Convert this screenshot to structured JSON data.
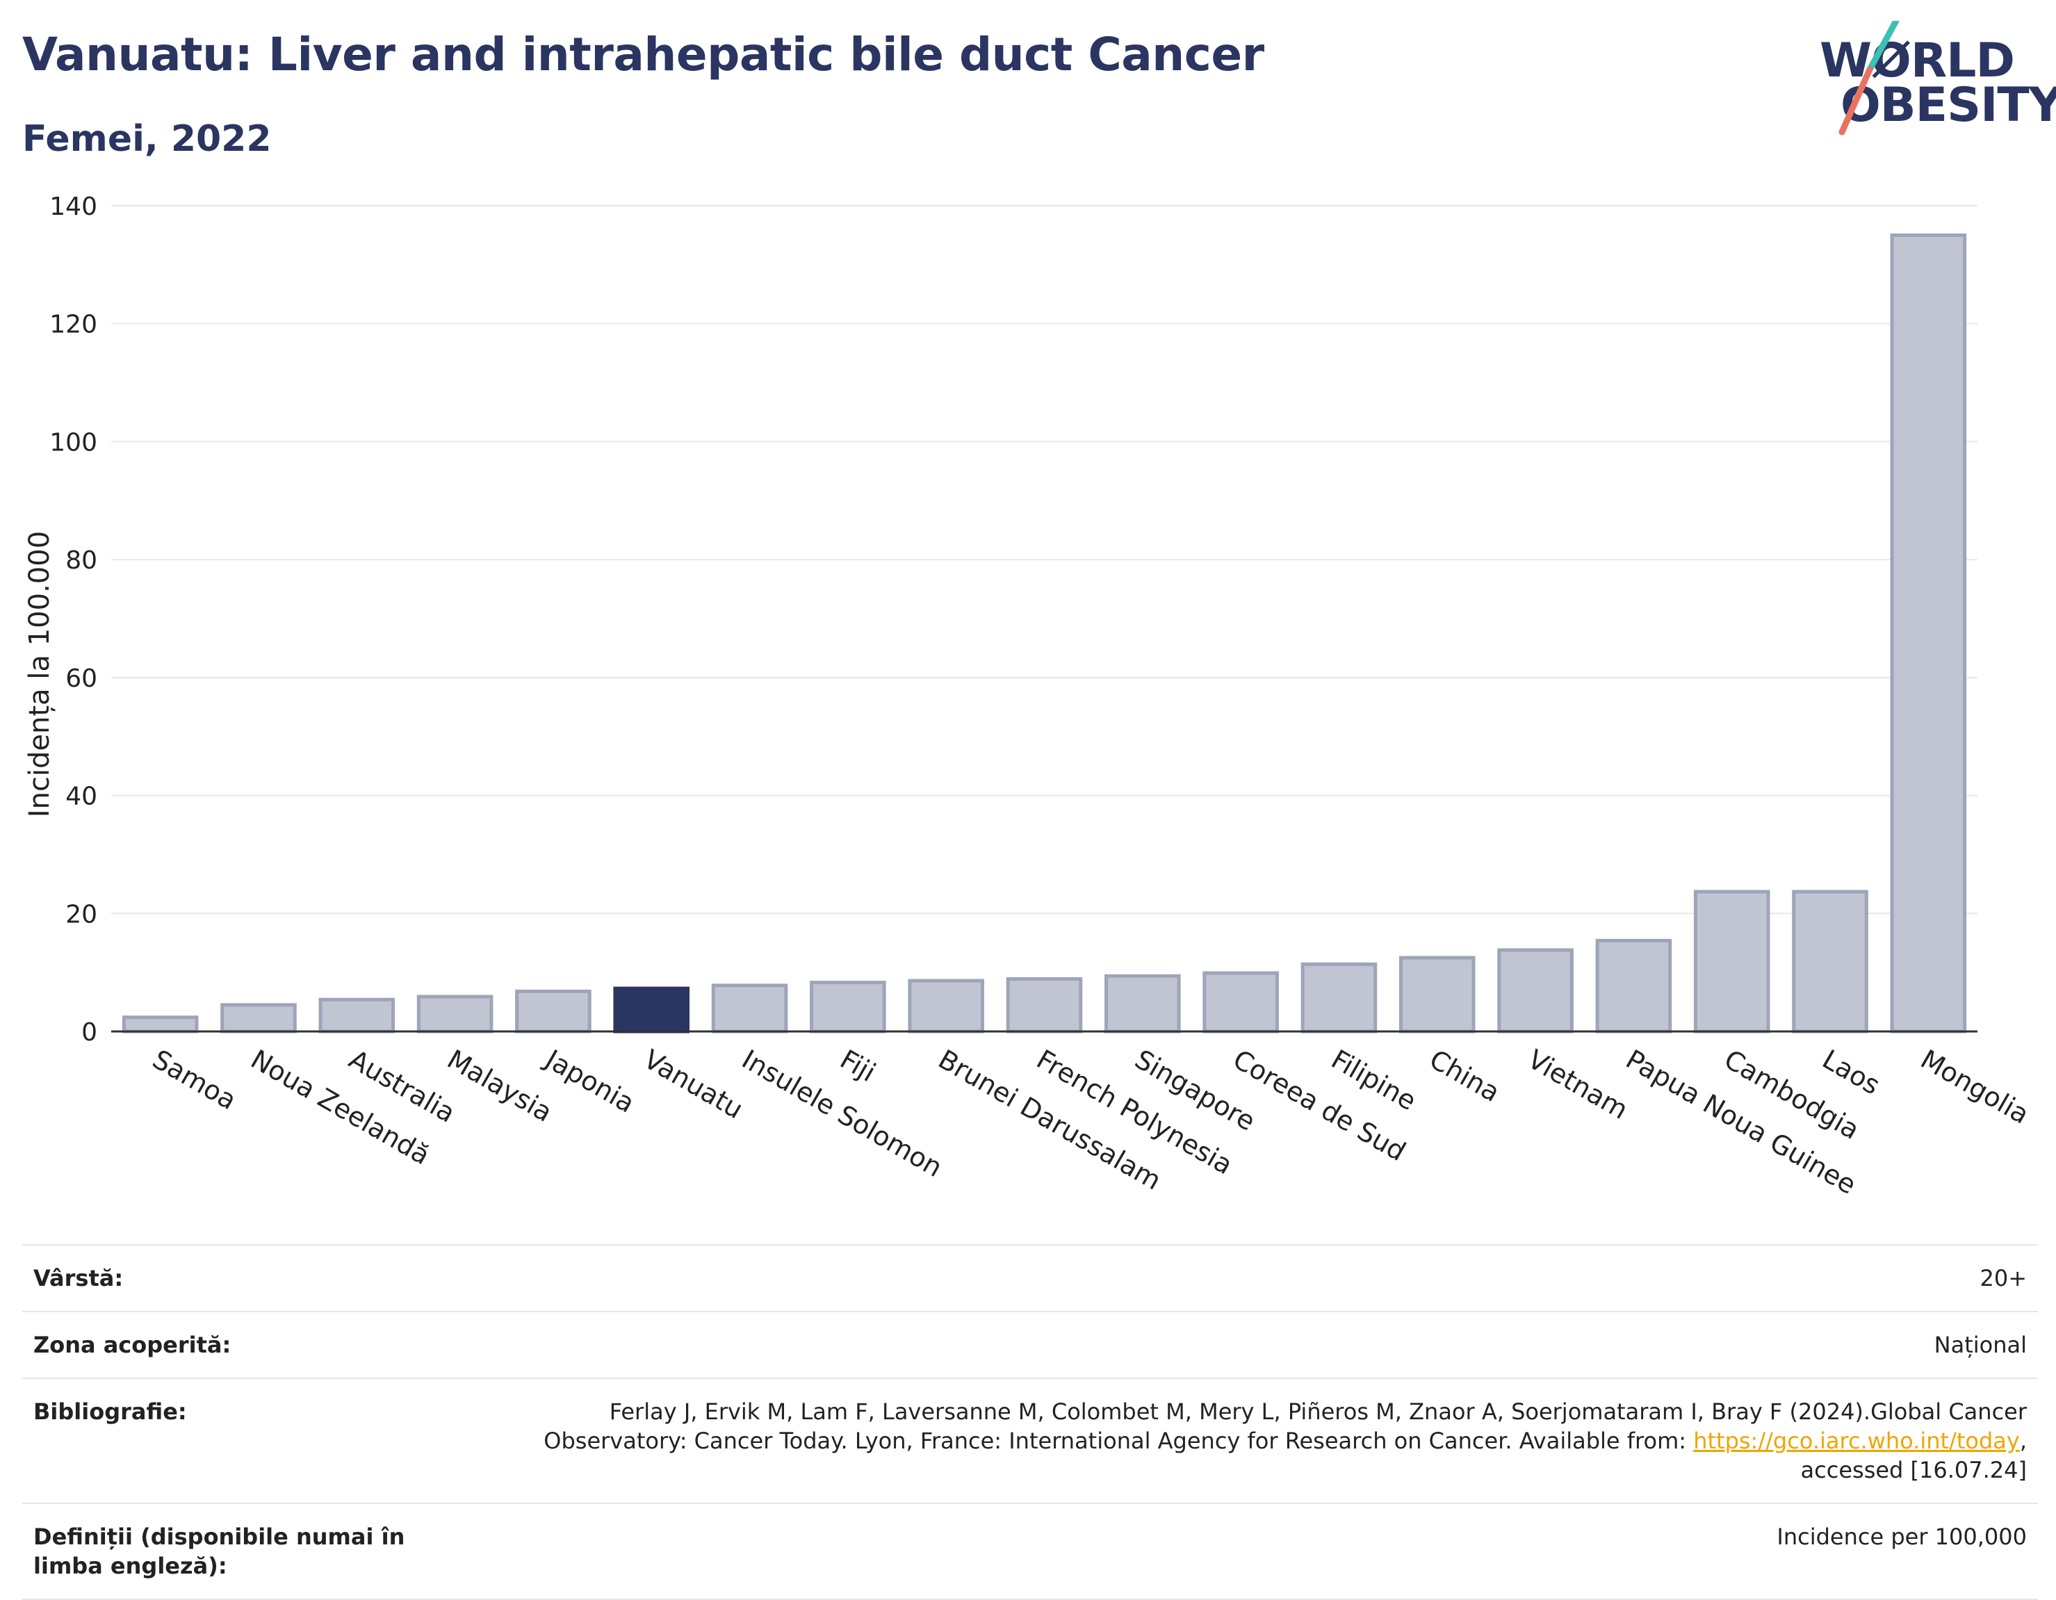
{
  "header": {
    "title": "Vanuatu: Liver and intrahepatic bile duct Cancer",
    "subtitle": "Femei, 2022"
  },
  "logo": {
    "line1": "WØRLD",
    "line2": "OBESITY",
    "icon": "world-obesity-logo"
  },
  "colors": {
    "highlight": "#2b3561",
    "bar": "#c1c5d2",
    "bar_edge": "#9ea4b9",
    "link": "#f0a500",
    "logo_teal": "#3cbfb4",
    "logo_coral": "#e8735f"
  },
  "chart_data": {
    "type": "bar",
    "title": "Vanuatu: Liver and intrahepatic bile duct Cancer",
    "subtitle": "Femei, 2022",
    "xlabel": "",
    "ylabel": "Incidența la 100.000",
    "ylim": [
      0,
      140
    ],
    "yticks": [
      0,
      20,
      40,
      60,
      80,
      100,
      120,
      140
    ],
    "grid": true,
    "highlight": "Vanuatu",
    "categories": [
      "Samoa",
      "Noua Zeelandă",
      "Australia",
      "Malaysia",
      "Japonia",
      "Vanuatu",
      "Insulele Solomon",
      "Fiji",
      "Brunei Darussalam",
      "French Polynesia",
      "Singapore",
      "Coreea de Sud",
      "Filipine",
      "China",
      "Vietnam",
      "Papua Noua Guinee",
      "Cambodgia",
      "Laos",
      "Mongolia"
    ],
    "values": [
      2.4,
      4.5,
      5.4,
      5.9,
      6.8,
      7.3,
      7.8,
      8.3,
      8.6,
      8.9,
      9.4,
      9.9,
      11.4,
      12.5,
      13.8,
      15.4,
      23.7,
      23.7,
      135.0
    ]
  },
  "meta": {
    "rows": [
      {
        "label": "Vârstă:",
        "value": "20+"
      },
      {
        "label": "Zona acoperită:",
        "value": "Național"
      },
      {
        "label": "Bibliografie:",
        "value_pre": "Ferlay J, Ervik M, Lam F, Laversanne M, Colombet M, Mery L, Piñeros M, Znaor A, Soerjomataram I, Bray F (2024).Global Cancer Observatory: Cancer Today. Lyon, France: International Agency for Research on Cancer. Available from: ",
        "link": "https://gco.iarc.who.int/today",
        "value_post": ", accessed [16.07.24]"
      },
      {
        "label": "Definiții (disponibile numai în limba engleză):",
        "value": "Incidence per 100,000"
      }
    ]
  }
}
